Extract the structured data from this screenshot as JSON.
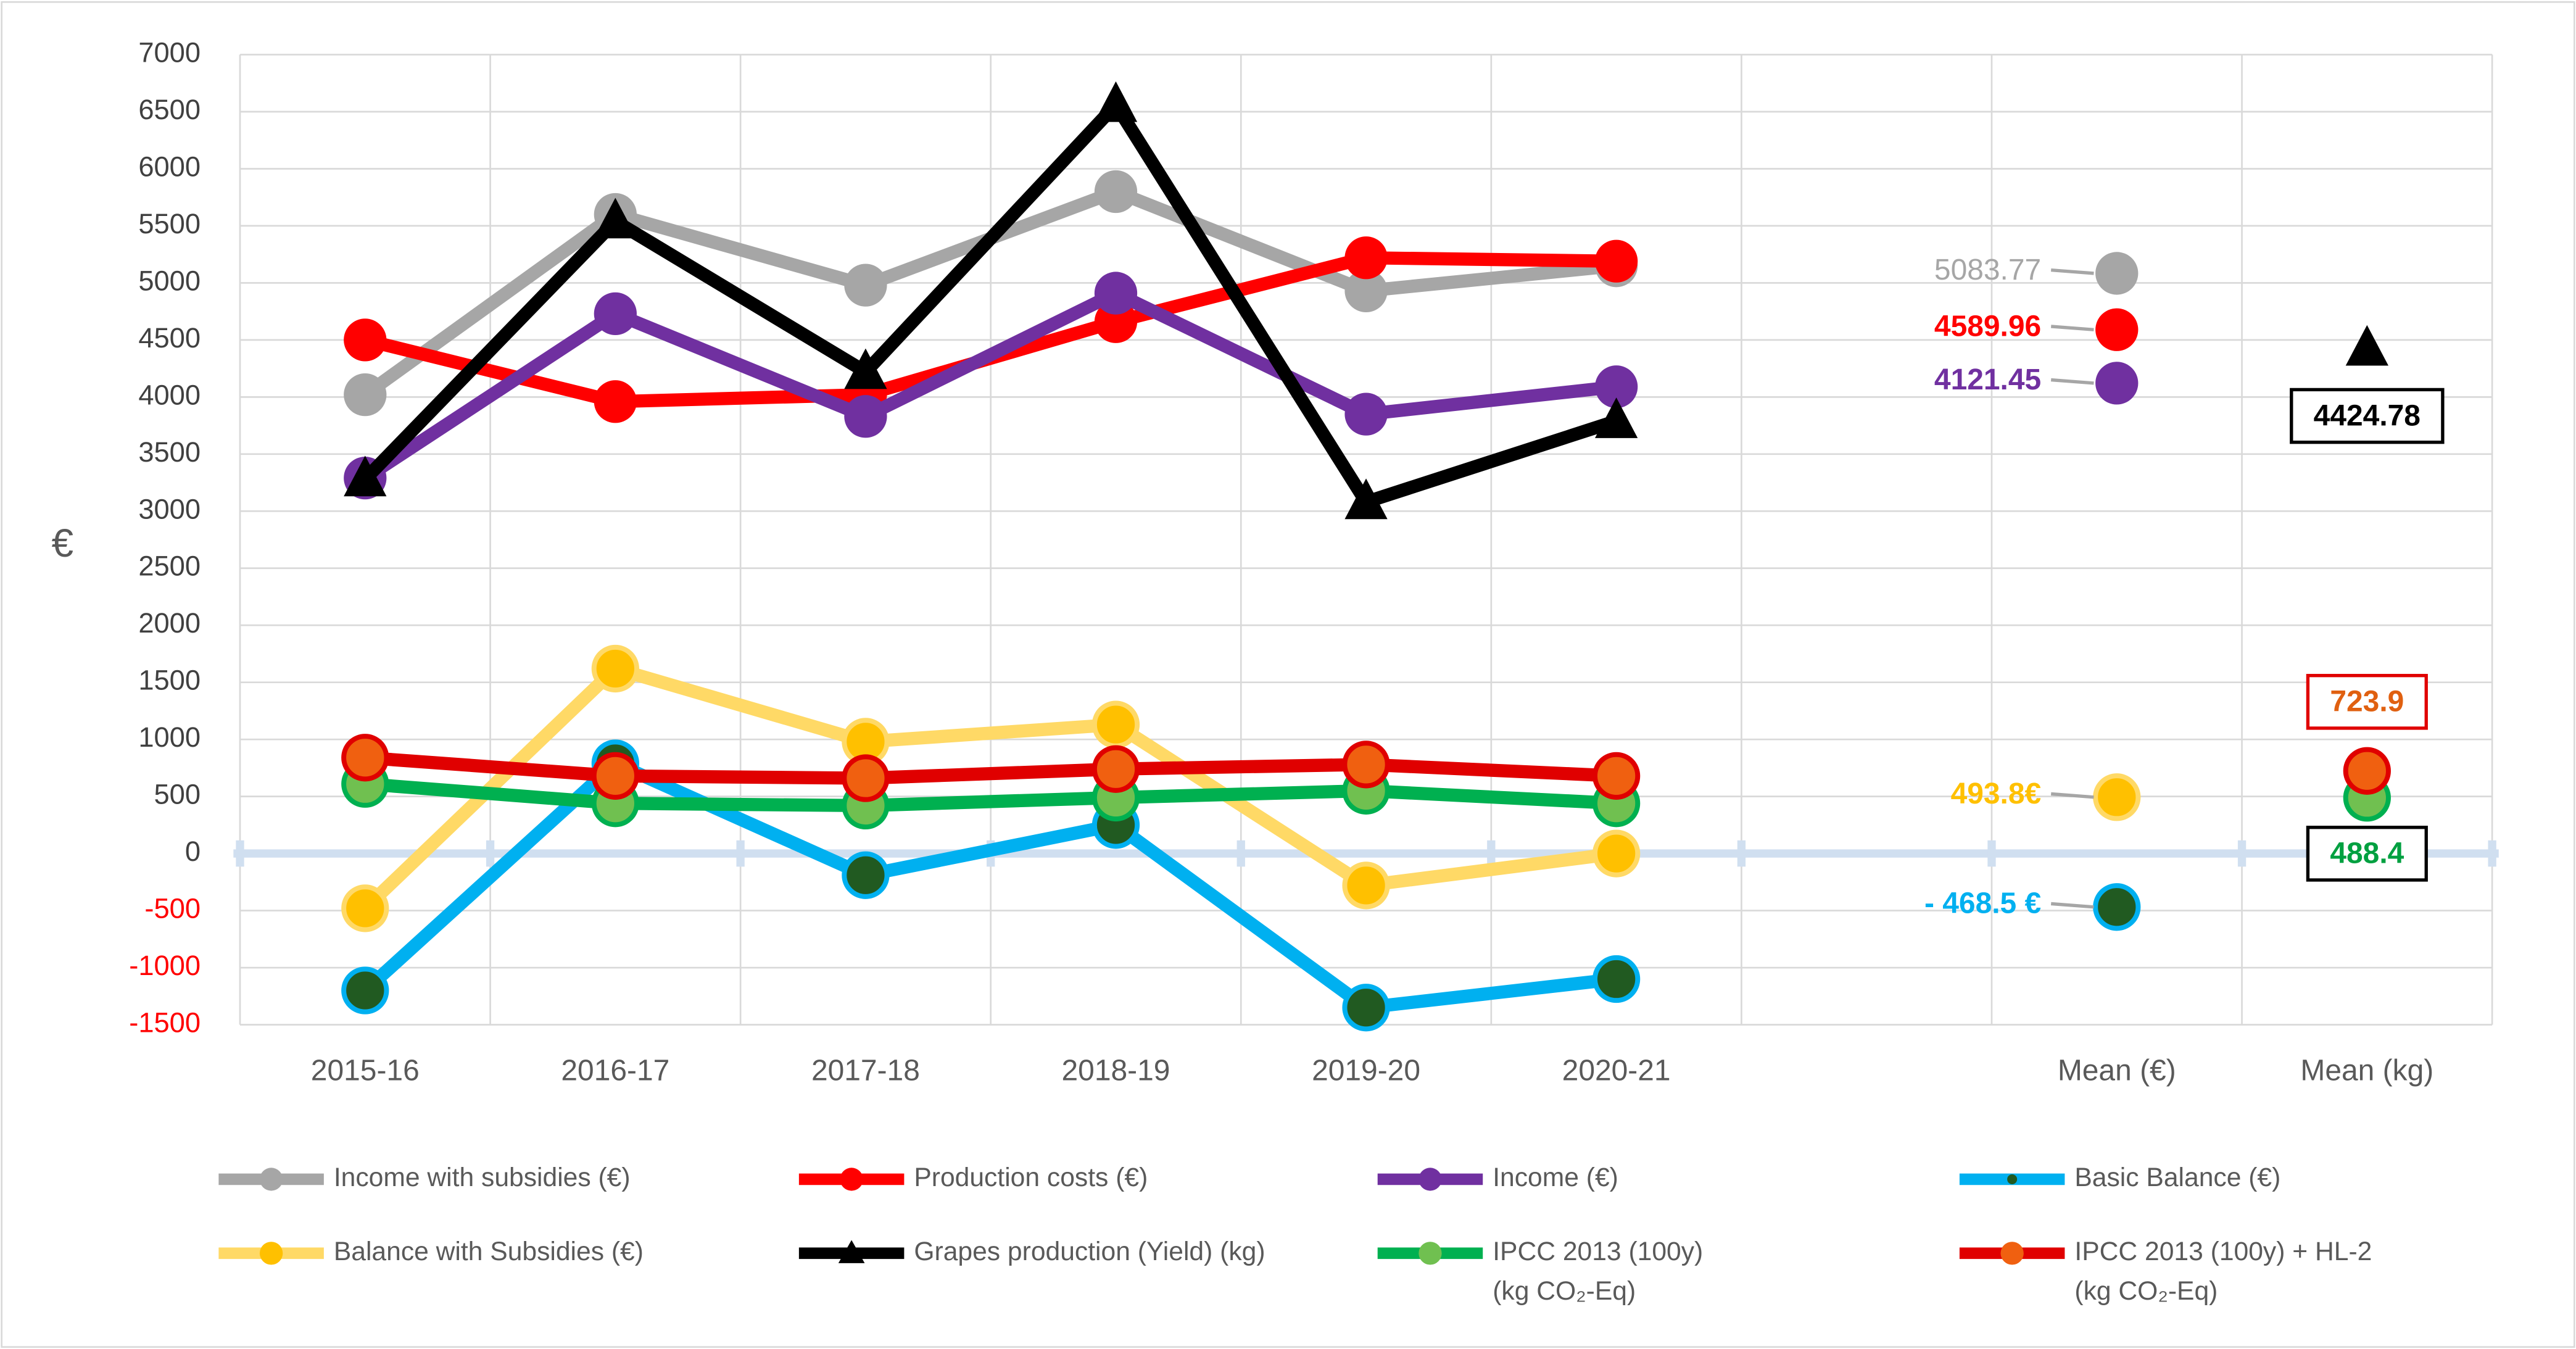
{
  "chart_data": {
    "type": "line",
    "y_axis_label": "€",
    "categories": [
      "2015-16",
      "2016-17",
      "2017-18",
      "2018-19",
      "2019-20",
      "2020-21",
      null,
      "Mean (€)",
      "Mean (kg)"
    ],
    "ylim": [
      -1500,
      7000
    ],
    "yticks": [
      -1500,
      -1000,
      -500,
      0,
      500,
      1000,
      1500,
      2000,
      2500,
      3000,
      3500,
      4000,
      4500,
      5000,
      5500,
      6000,
      6500,
      7000
    ],
    "grid": true,
    "legend": "bottom",
    "series": [
      {
        "name": "Income with subsidies (€)",
        "color": "#a6a6a6",
        "marker": "circle",
        "marker_color": "#a6a6a6",
        "values": [
          4020,
          5600,
          4980,
          5800,
          4930,
          5150,
          null,
          5083.77,
          null
        ],
        "value_labels": [
          null,
          null,
          null,
          null,
          null,
          null,
          null,
          "5083.77",
          null
        ]
      },
      {
        "name": "Production costs (€)",
        "color": "#ff0000",
        "marker": "circle",
        "marker_color": "#ff0000",
        "values": [
          4500,
          3960,
          4020,
          4660,
          5220,
          5190,
          null,
          4589.96,
          null
        ],
        "value_labels": [
          null,
          null,
          null,
          null,
          null,
          null,
          null,
          "4589.96",
          null
        ]
      },
      {
        "name": "Income (€)",
        "color": "#7030a0",
        "marker": "circle",
        "marker_color": "#7030a0",
        "values": [
          3290,
          4730,
          3830,
          4910,
          3850,
          4090,
          null,
          4121.45,
          null
        ],
        "value_labels": [
          null,
          null,
          null,
          null,
          null,
          null,
          null,
          "4121.45",
          null
        ]
      },
      {
        "name": "Basic  Balance (€)",
        "color": "#00b0f0",
        "marker": "circle",
        "marker_color": "#215a21",
        "values": [
          -1200,
          790,
          -190,
          250,
          -1350,
          -1100,
          null,
          -468.5,
          null
        ],
        "value_labels": [
          null,
          null,
          null,
          null,
          null,
          null,
          null,
          "- 468.5 €",
          null
        ]
      },
      {
        "name": "Balance with Subsidies (€)",
        "color": "#ffd966",
        "marker": "circle",
        "marker_color": "#ffc000",
        "values": [
          -480,
          1620,
          980,
          1130,
          -280,
          0,
          null,
          493.8,
          null
        ],
        "value_labels": [
          null,
          null,
          null,
          null,
          null,
          null,
          null,
          "493.8€",
          null
        ]
      },
      {
        "name": "Grapes production (Yield) (kg)",
        "color": "#000000",
        "marker": "triangle",
        "marker_color": "#000000",
        "values": [
          3280,
          5540,
          4220,
          6560,
          3080,
          3790,
          null,
          null,
          4424.78
        ],
        "value_labels": [
          null,
          null,
          null,
          null,
          null,
          null,
          null,
          null,
          "4424.78"
        ]
      },
      {
        "name": "IPCC 2013 (100y)\n(kg CO₂-Eq)",
        "color": "#00b050",
        "marker": "circle",
        "marker_color": "#70c050",
        "values": [
          610,
          440,
          420,
          490,
          550,
          440,
          null,
          null,
          488.4
        ],
        "value_labels": [
          null,
          null,
          null,
          null,
          null,
          null,
          null,
          null,
          "488.4"
        ]
      },
      {
        "name": "IPCC 2013 (100y) + HL-2\n(kg CO₂-Eq)",
        "color": "#e00000",
        "marker": "circle",
        "marker_color": "#f06010",
        "values": [
          840,
          680,
          660,
          740,
          780,
          680,
          null,
          null,
          723.9
        ],
        "value_labels": [
          null,
          null,
          null,
          null,
          null,
          null,
          null,
          null,
          "723.9"
        ]
      }
    ]
  }
}
